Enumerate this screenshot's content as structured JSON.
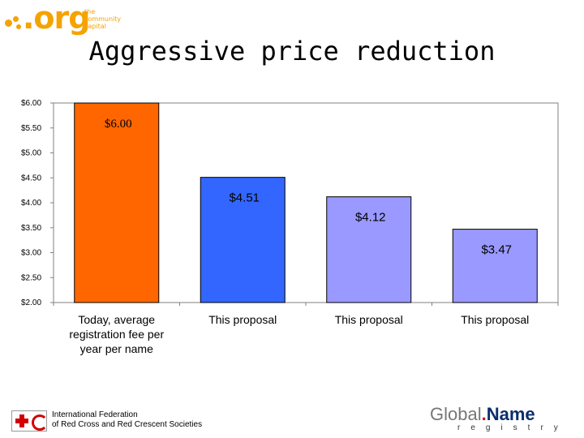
{
  "header": {
    "org_logo": {
      "word": ".org",
      "tagline": [
        "the",
        "community",
        "capital"
      ],
      "color": "#f5a300",
      "icon": "org-dots-logo"
    }
  },
  "footer": {
    "ifrc": {
      "line1": "International Federation",
      "line2": "of Red Cross and Red Crescent Societies",
      "icon": "red-cross-crescent-emblem",
      "color": "#d40000"
    },
    "global_name": {
      "part1": "Global",
      "part2": ".",
      "part3": "Name",
      "sub": "registry",
      "colors": {
        "global": "#777777",
        "dot": "#c8161d",
        "name": "#0b2d6b"
      }
    }
  },
  "chart_data": {
    "type": "bar",
    "title": "Aggressive price reduction",
    "categories": [
      [
        "Today, average",
        "registration fee per",
        "year per name"
      ],
      [
        "This proposal"
      ],
      [
        "This proposal"
      ],
      [
        "This proposal"
      ]
    ],
    "values": [
      6.0,
      4.51,
      4.12,
      3.47
    ],
    "data_labels": [
      "$6.00",
      "$4.51",
      "$4.12",
      "$3.47"
    ],
    "bar_colors": [
      "#ff6600",
      "#3366ff",
      "#9999ff",
      "#9999ff"
    ],
    "ylim": [
      2.0,
      6.0
    ],
    "yticks": [
      {
        "value": 6.0,
        "label": "$6.00"
      },
      {
        "value": 5.5,
        "label": "$5.50"
      },
      {
        "value": 5.0,
        "label": "$5.00"
      },
      {
        "value": 4.5,
        "label": "$4.50"
      },
      {
        "value": 4.0,
        "label": "$4.00"
      },
      {
        "value": 3.5,
        "label": "$3.50"
      },
      {
        "value": 3.0,
        "label": "$3.00"
      },
      {
        "value": 2.5,
        "label": "$2.50"
      },
      {
        "value": 2.0,
        "label": "$2.00"
      }
    ],
    "grid": false,
    "legend": "none",
    "xlabel": "",
    "ylabel": ""
  }
}
